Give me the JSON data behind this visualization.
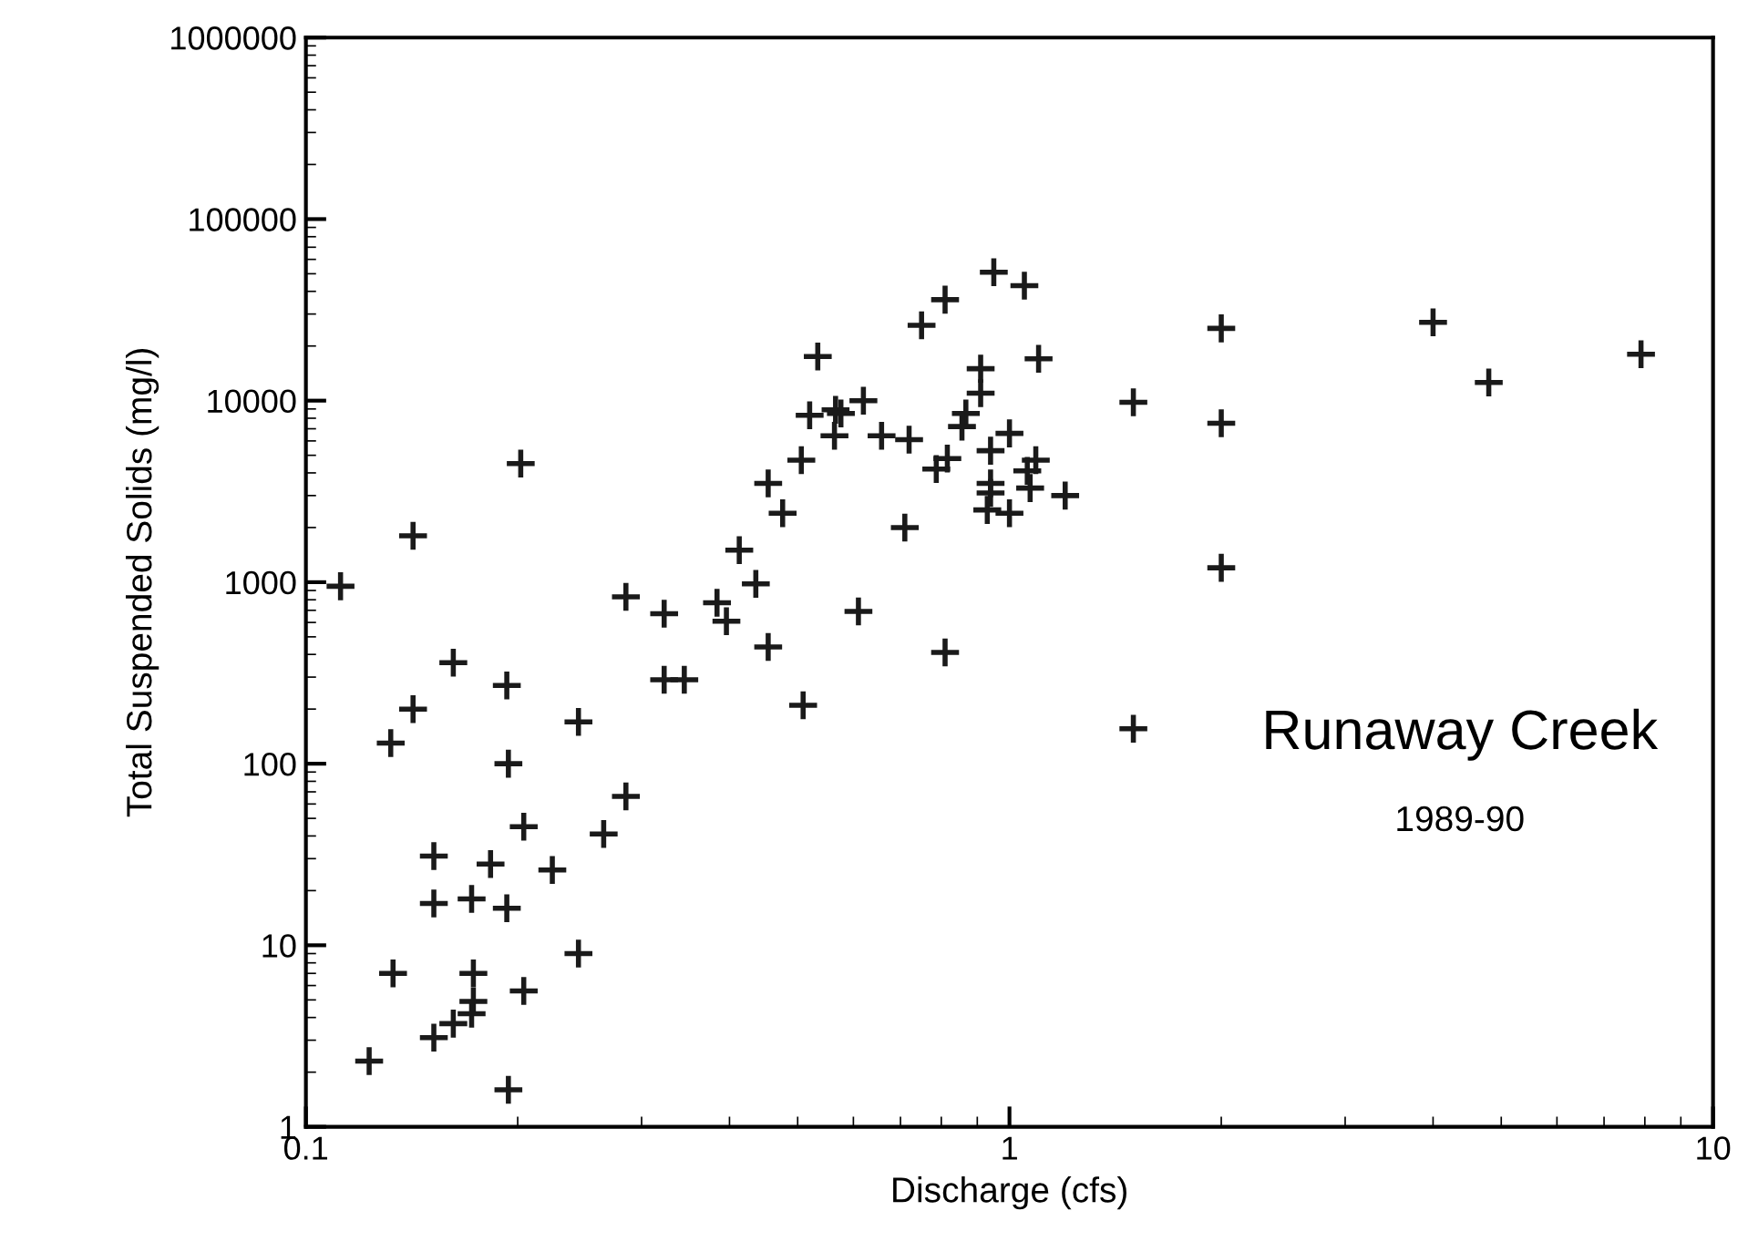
{
  "chart_data": {
    "type": "scatter",
    "xlabel": "Discharge (cfs)",
    "ylabel": "Total Suspended Solids (mg/l)",
    "log": "xy",
    "xlim": [
      0.1,
      10
    ],
    "ylim": [
      1,
      1000000
    ],
    "xticks": [
      0.1,
      1,
      10
    ],
    "yticks": [
      1,
      10,
      100,
      1000,
      10000,
      100000,
      1000000
    ],
    "grid": false,
    "legend": false,
    "marker": "cross",
    "annotations": [
      "Runaway Creek",
      "1989-90"
    ],
    "series": [
      {
        "color": "#1a1a1a",
        "x": [
          0.112,
          0.142,
          0.202,
          0.162,
          0.142,
          0.132,
          0.193,
          0.194,
          0.244,
          0.285,
          0.323,
          0.323,
          0.345,
          0.384,
          0.396,
          0.413,
          0.436,
          0.454,
          0.454,
          0.476,
          0.506,
          0.509,
          0.52,
          0.534,
          0.285,
          0.265,
          0.224,
          0.204,
          0.183,
          0.152,
          0.152,
          0.172,
          0.193,
          0.244,
          0.133,
          0.173,
          0.173,
          0.172,
          0.162,
          0.152,
          0.204,
          0.123,
          0.194,
          0.95,
          1.05,
          0.81,
          0.75,
          0.91,
          1.1,
          0.91,
          0.62,
          0.566,
          0.576,
          0.564,
          0.658,
          0.72,
          0.867,
          0.856,
          0.787,
          0.816,
          1.0,
          0.94,
          1.09,
          1.06,
          1.07,
          0.94,
          0.94,
          0.93,
          1.0,
          1.2,
          1.5,
          0.71,
          0.61,
          0.81,
          1.5,
          2.0,
          4.0,
          4.8,
          7.9,
          2.0,
          2.0
        ],
        "values": [
          950,
          1800,
          4500,
          360,
          200,
          130,
          270,
          100,
          170,
          830,
          670,
          290,
          290,
          770,
          610,
          1500,
          980,
          3500,
          440,
          2400,
          4700,
          210,
          8300,
          17500,
          66,
          41,
          26,
          45,
          28,
          31,
          17,
          18,
          16,
          9,
          7,
          7,
          4.9,
          4.2,
          3.7,
          3.1,
          5.6,
          2.3,
          1.6,
          51000,
          43000,
          36000,
          26000,
          15000,
          17000,
          11000,
          10000,
          8900,
          8500,
          6400,
          6400,
          6100,
          8500,
          7200,
          4200,
          4800,
          6600,
          5300,
          4700,
          4100,
          3300,
          3500,
          3100,
          2500,
          2400,
          3000,
          9800,
          2000,
          690,
          410,
          156,
          25000,
          27000,
          12600,
          18000,
          7500,
          1200
        ]
      }
    ]
  }
}
